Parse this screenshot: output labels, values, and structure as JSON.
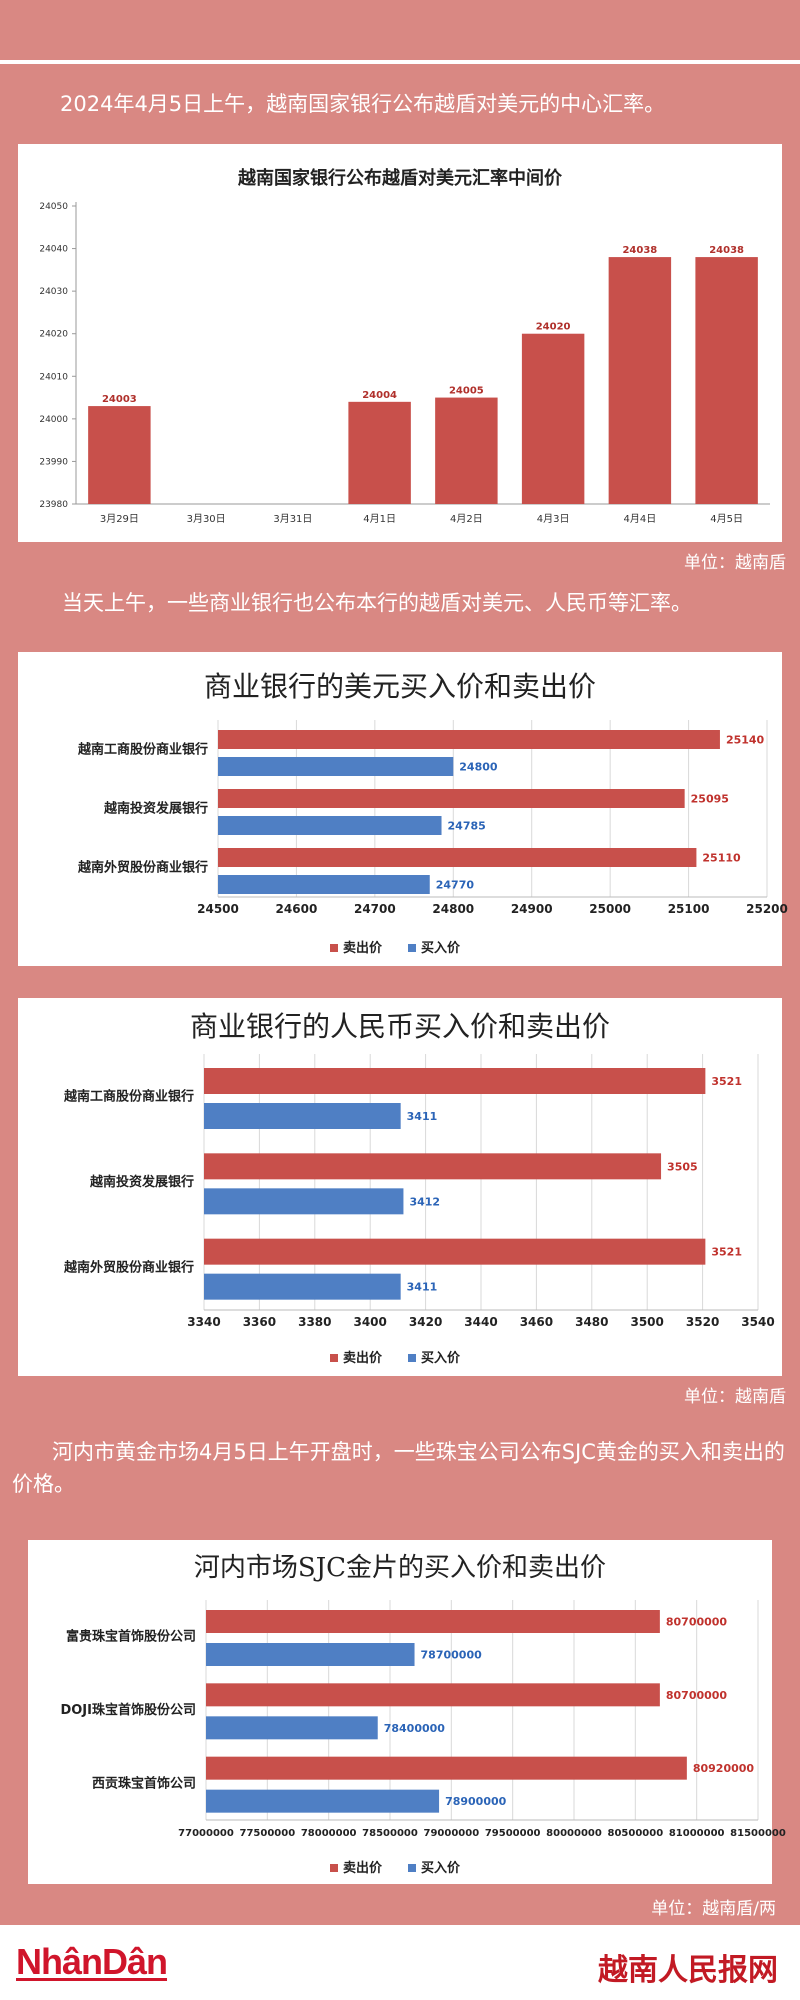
{
  "intro": "2024年4月5日上午，越南国家银行公布越盾对美元的中心汇率。",
  "unit1": "单位：越南盾",
  "para2": "当天上午，一些商业银行也公布本行的越盾对美元、人民币等汇率。",
  "unit2": "单位：越南盾",
  "para3": "河内市黄金市场4月5日上午开盘时，一些珠宝公司公布SJC黄金的买入和卖出的价格。",
  "unit3": "单位：越南盾/两",
  "footer": {
    "logo_left": "NhânDân",
    "logo_right": "越南人民报网"
  },
  "chart_data": [
    {
      "type": "bar",
      "title": "越南国家银行公布越盾对美元汇率中间价",
      "categories": [
        "3月29日",
        "3月30日",
        "3月31日",
        "4月1日",
        "4月2日",
        "4月3日",
        "4月4日",
        "4月5日"
      ],
      "values": [
        24003,
        null,
        null,
        24004,
        24005,
        24020,
        24038,
        24038
      ],
      "ylim": [
        23980,
        24050
      ],
      "yticks": [
        23980,
        23990,
        24000,
        24010,
        24020,
        24030,
        24040,
        24050
      ],
      "color": "#c8504b",
      "grid": false
    },
    {
      "type": "bar",
      "orientation": "horizontal",
      "title": "商业银行的美元买入价和卖出价",
      "categories": [
        "越南工商股份商业银行",
        "越南投资发展银行",
        "越南外贸股份商业银行"
      ],
      "series": [
        {
          "name": "卖出价",
          "values": [
            25140,
            25095,
            25110
          ],
          "color": "#c8504b"
        },
        {
          "name": "买入价",
          "values": [
            24800,
            24785,
            24770
          ],
          "color": "#4f7fc4"
        }
      ],
      "xlim": [
        24500,
        25200
      ],
      "xticks": [
        24500,
        24600,
        24700,
        24800,
        24900,
        25000,
        25100,
        25200
      ],
      "legend": "bottom",
      "grid": true
    },
    {
      "type": "bar",
      "orientation": "horizontal",
      "title": "商业银行的人民币买入价和卖出价",
      "categories": [
        "越南工商股份商业银行",
        "越南投资发展银行",
        "越南外贸股份商业银行"
      ],
      "series": [
        {
          "name": "卖出价",
          "values": [
            3521,
            3505,
            3521
          ],
          "color": "#c8504b"
        },
        {
          "name": "买入价",
          "values": [
            3411,
            3412,
            3411
          ],
          "color": "#4f7fc4"
        }
      ],
      "xlim": [
        3340,
        3540
      ],
      "xticks": [
        3340,
        3360,
        3380,
        3400,
        3420,
        3440,
        3460,
        3480,
        3500,
        3520,
        3540
      ],
      "legend": "bottom",
      "grid": true
    },
    {
      "type": "bar",
      "orientation": "horizontal",
      "title": "河内市场SJC金片的买入价和卖出价",
      "categories": [
        "富贵珠宝首饰股份公司",
        "DOJI珠宝首饰股份公司",
        "西贡珠宝首饰公司"
      ],
      "series": [
        {
          "name": "卖出价",
          "values": [
            80700000,
            80700000,
            80920000
          ],
          "color": "#c8504b"
        },
        {
          "name": "买入价",
          "values": [
            78700000,
            78400000,
            78900000
          ],
          "color": "#4f7fc4"
        }
      ],
      "xlim": [
        77000000,
        81500000
      ],
      "xticks": [
        77000000,
        77500000,
        78000000,
        78500000,
        79000000,
        79500000,
        80000000,
        80500000,
        81000000,
        81500000
      ],
      "legend": "bottom",
      "grid": true
    }
  ]
}
